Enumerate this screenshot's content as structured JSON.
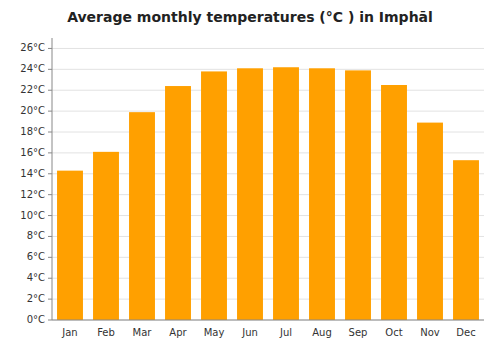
{
  "chart_data": {
    "type": "bar",
    "title": "Average monthly temperatures (°C ) in Imphāl",
    "categories": [
      "Jan",
      "Feb",
      "Mar",
      "Apr",
      "May",
      "Jun",
      "Jul",
      "Aug",
      "Sep",
      "Oct",
      "Nov",
      "Dec"
    ],
    "values": [
      14.3,
      16.1,
      19.9,
      22.4,
      23.8,
      24.1,
      24.2,
      24.1,
      23.9,
      22.5,
      18.9,
      15.3
    ],
    "color": "#FFA000",
    "ylim": [
      0,
      27
    ],
    "yticks": [
      {
        "value": 0,
        "label": "0°C"
      },
      {
        "value": 2,
        "label": "2°C"
      },
      {
        "value": 4,
        "label": "4°C"
      },
      {
        "value": 6,
        "label": "6°C"
      },
      {
        "value": 8,
        "label": "8°C"
      },
      {
        "value": 10,
        "label": "10°C"
      },
      {
        "value": 12,
        "label": "12°C"
      },
      {
        "value": 14,
        "label": "14°C"
      },
      {
        "value": 16,
        "label": "16°C"
      },
      {
        "value": 18,
        "label": "18°C"
      },
      {
        "value": 20,
        "label": "20°C"
      },
      {
        "value": 22,
        "label": "22°C"
      },
      {
        "value": 24,
        "label": "24°C"
      },
      {
        "value": 26,
        "label": "26°C"
      }
    ],
    "grid": true
  }
}
